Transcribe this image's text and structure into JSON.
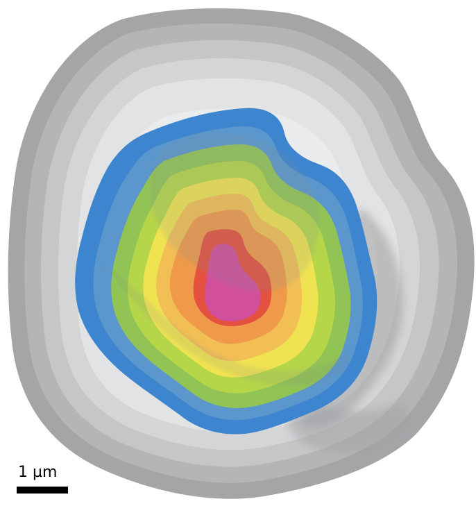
{
  "scale_bar": {
    "label": "1 µm"
  },
  "colors": {
    "background": "#ffffff",
    "cell_outer": "#a4a5a7",
    "cell_inner": "#e6e7e8",
    "shadow": "#9a9b9d",
    "signal_low": "#3d86cf",
    "signal_mid": "#b6d64a",
    "signal_yellow": "#f0e352",
    "signal_orange": "#ef9a4a",
    "signal_red": "#e4513f",
    "signal_peak": "#d2509b"
  }
}
